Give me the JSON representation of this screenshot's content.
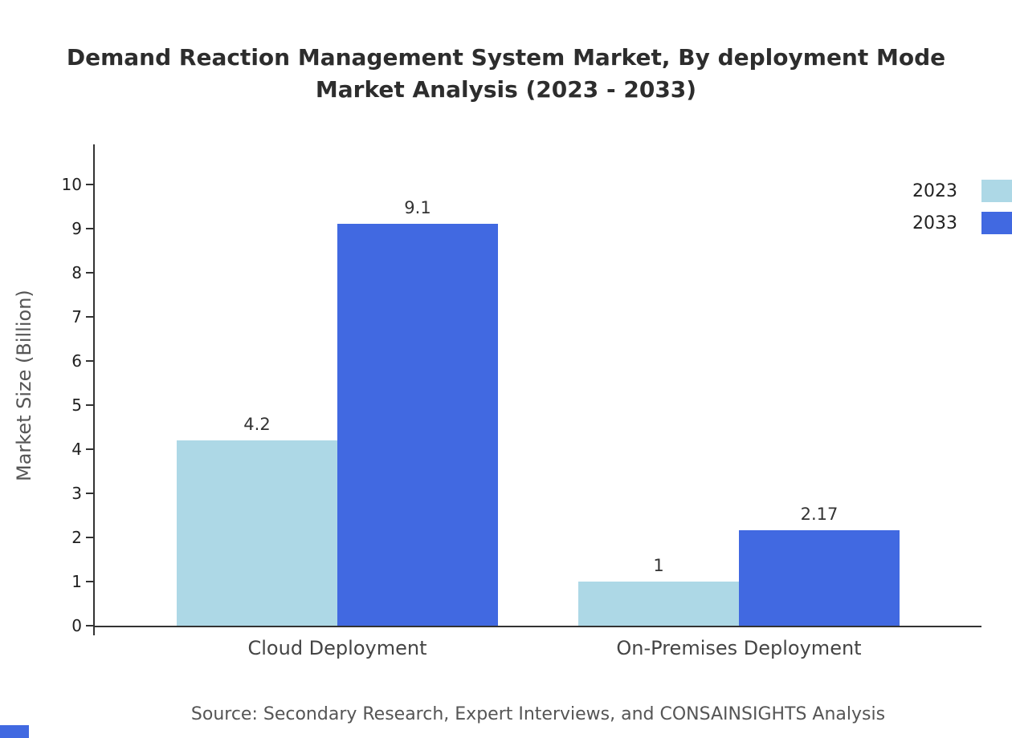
{
  "title": {
    "line1": "Demand Reaction Management System Market, By deployment Mode",
    "line2": "Market Analysis (2023 - 2033)"
  },
  "chart_data": {
    "type": "bar",
    "title": "Demand Reaction Management System Market, By deployment Mode Market Analysis (2023 - 2033)",
    "categories": [
      "Cloud Deployment",
      "On-Premises Deployment"
    ],
    "series": [
      {
        "name": "2023",
        "color": "#ADD8E6",
        "values": [
          4.2,
          1
        ]
      },
      {
        "name": "2033",
        "color": "#4169E1",
        "values": [
          9.1,
          2.17
        ]
      }
    ],
    "value_labels": [
      "4.2",
      "9.1",
      "1",
      "2.17"
    ],
    "xlabel": "",
    "ylabel": "Market Size (Billion)",
    "ylim": [
      0,
      10
    ],
    "yticks": [
      0,
      1,
      2,
      3,
      4,
      5,
      6,
      7,
      8,
      9,
      10
    ],
    "legend": [
      "2023",
      "2033"
    ],
    "legend_position": "top-right",
    "grid": false
  },
  "source": "Source: Secondary Research, Expert Interviews, and CONSAINSIGHTS Analysis",
  "colors": {
    "series_2023": "#ADD8E6",
    "series_2033": "#4169E1",
    "axis": "#333333",
    "title_text": "#2D2D2D",
    "muted_text": "#555555"
  }
}
